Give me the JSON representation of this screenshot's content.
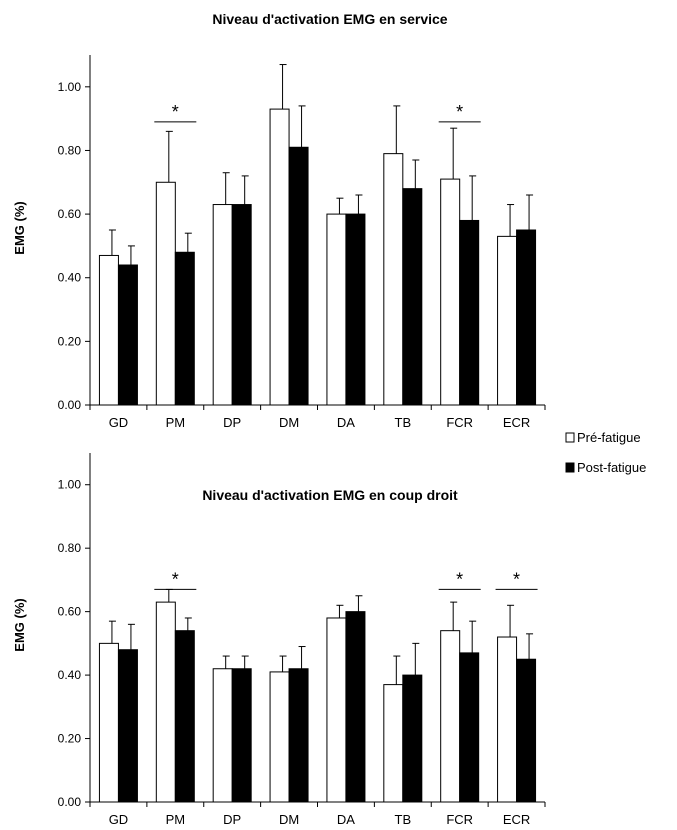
{
  "legend": [
    {
      "label": "Pré-fatigue",
      "color": "#ffffff"
    },
    {
      "label": "Post-fatigue",
      "color": "#000000"
    }
  ],
  "chart_data": [
    {
      "type": "bar",
      "title": "Niveau d'activation EMG en service",
      "ylabel": "EMG (%)",
      "xlabel": "",
      "ylim": [
        0,
        1.1
      ],
      "yticks": [
        "0.00",
        "0.20",
        "0.40",
        "0.60",
        "0.80",
        "1.00"
      ],
      "categories": [
        "GD",
        "PM",
        "DP",
        "DM",
        "DA",
        "TB",
        "FCR",
        "ECR"
      ],
      "series": [
        {
          "name": "Pré-fatigue",
          "values": [
            0.47,
            0.7,
            0.63,
            0.93,
            0.6,
            0.79,
            0.71,
            0.53
          ],
          "errors": [
            0.08,
            0.16,
            0.1,
            0.14,
            0.05,
            0.15,
            0.16,
            0.1
          ]
        },
        {
          "name": "Post-fatigue",
          "values": [
            0.44,
            0.48,
            0.63,
            0.81,
            0.6,
            0.68,
            0.58,
            0.55
          ],
          "errors": [
            0.06,
            0.06,
            0.09,
            0.13,
            0.06,
            0.09,
            0.14,
            0.11
          ]
        }
      ],
      "significance": [
        {
          "category": "PM",
          "label": "*",
          "level": 0.89
        },
        {
          "category": "FCR",
          "label": "*",
          "level": 0.89
        }
      ]
    },
    {
      "type": "bar",
      "title": "Niveau d'activation EMG en coup droit",
      "ylabel": "EMG (%)",
      "xlabel": "",
      "ylim": [
        0,
        1.1
      ],
      "yticks": [
        "0.00",
        "0.20",
        "0.40",
        "0.60",
        "0.80",
        "1.00"
      ],
      "categories": [
        "GD",
        "PM",
        "DP",
        "DM",
        "DA",
        "TB",
        "FCR",
        "ECR"
      ],
      "series": [
        {
          "name": "Pré-fatigue",
          "values": [
            0.5,
            0.63,
            0.42,
            0.41,
            0.58,
            0.37,
            0.54,
            0.52
          ],
          "errors": [
            0.07,
            0.04,
            0.04,
            0.05,
            0.04,
            0.09,
            0.09,
            0.1
          ]
        },
        {
          "name": "Post-fatigue",
          "values": [
            0.48,
            0.54,
            0.42,
            0.42,
            0.6,
            0.4,
            0.47,
            0.45
          ],
          "errors": [
            0.08,
            0.04,
            0.04,
            0.07,
            0.05,
            0.1,
            0.1,
            0.08
          ]
        }
      ],
      "significance": [
        {
          "category": "PM",
          "label": "*",
          "level": 0.67
        },
        {
          "category": "FCR",
          "label": "*",
          "level": 0.67
        },
        {
          "category": "ECR",
          "label": "*",
          "level": 0.67
        }
      ]
    }
  ]
}
